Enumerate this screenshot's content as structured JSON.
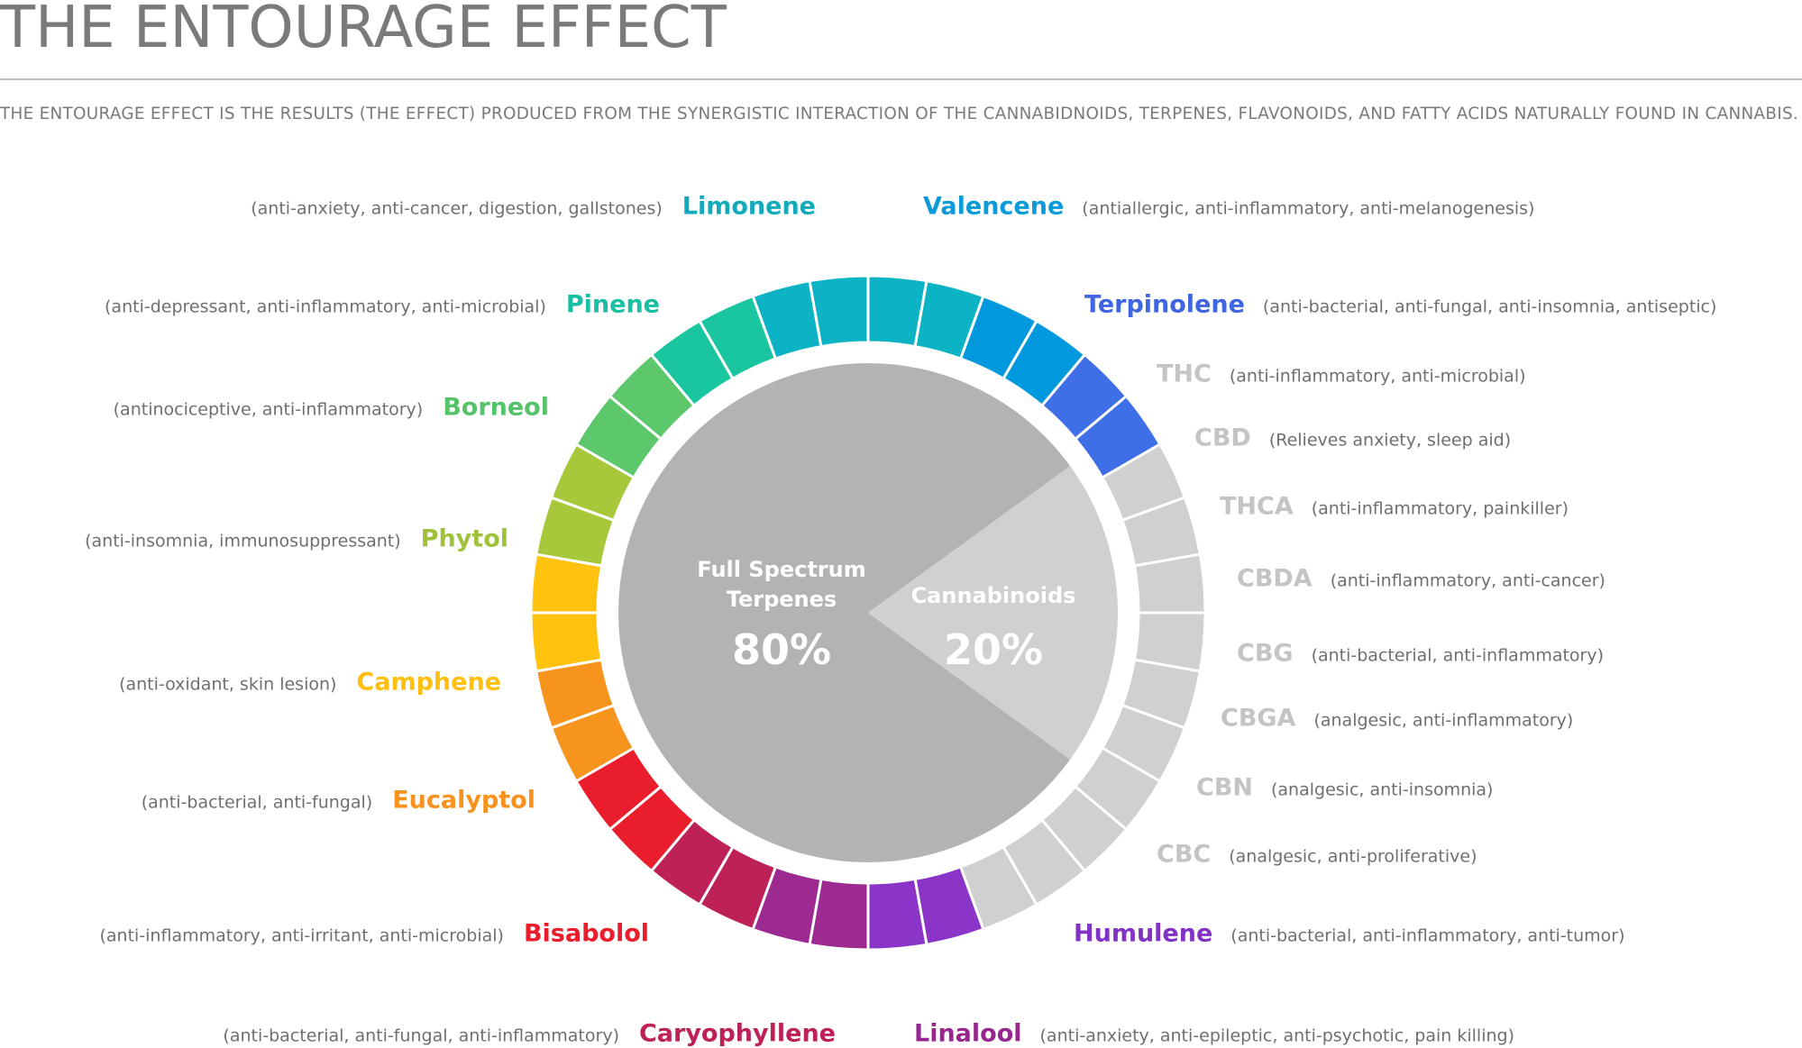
{
  "title": "THE ENTOURAGE EFFECT",
  "subtitle": "THE ENTOURAGE EFFECT IS THE RESULTS (THE EFFECT) PRODUCED FROM THE SYNERGISTIC INTERACTION OF THE CANNABIDNOIDS, TERPENES, FLAVONOIDS, AND FATTY ACIDS NATURALLY FOUND IN CANNABIS.",
  "pie": {
    "terpenes": {
      "label_line1": "Full Spectrum",
      "label_line2": "Terpenes",
      "percent": "80%",
      "value": 80,
      "color": "#b3b3b3"
    },
    "cannabinoids": {
      "label": "Cannabinoids",
      "percent": "20%",
      "value": 20,
      "color": "#d0d0d0"
    }
  },
  "ring_colors": [
    "#0cb3c4",
    "#0cb3c4",
    "#0099dd",
    "#0099dd",
    "#3f6fe6",
    "#3f6fe6",
    "#d0d0d0",
    "#d0d0d0",
    "#d0d0d0",
    "#d0d0d0",
    "#d0d0d0",
    "#d0d0d0",
    "#d0d0d0",
    "#d0d0d0",
    "#d0d0d0",
    "#d0d0d0",
    "#8b35c8",
    "#8b35c8",
    "#9c2a90",
    "#9c2a90",
    "#be2158",
    "#be2158",
    "#e91d2b",
    "#e91d2b",
    "#f7941d",
    "#f7941d",
    "#ffc20e",
    "#ffc20e",
    "#a6c83a",
    "#a6c83a",
    "#5cc86b",
    "#5cc86b",
    "#19c6a0",
    "#19c6a0",
    "#0cb3c4",
    "#0cb3c4"
  ],
  "compounds": {
    "limonene": {
      "name": "Limonene",
      "desc": "(anti-anxiety, anti-cancer, digestion, gallstones)",
      "color": "#13aabb"
    },
    "pinene": {
      "name": "Pinene",
      "desc": "(anti-depressant, anti-inflammatory, anti-microbial)",
      "color": "#18bfa0"
    },
    "borneol": {
      "name": "Borneol",
      "desc": "(antinociceptive, anti-inflammatory)",
      "color": "#55c36a"
    },
    "phytol": {
      "name": "Phytol",
      "desc": "(anti-insomnia, immunosuppressant)",
      "color": "#9fc23a"
    },
    "camphene": {
      "name": "Camphene",
      "desc": "(anti-oxidant, skin lesion)",
      "color": "#ffbf0f"
    },
    "eucalyptol": {
      "name": "Eucalyptol",
      "desc": "(anti-bacterial, anti-fungal)",
      "color": "#f7921e"
    },
    "bisabolol": {
      "name": "Bisabolol",
      "desc": "(anti-inflammatory, anti-irritant, anti-microbial)",
      "color": "#e91d2b"
    },
    "caryophyllene": {
      "name": "Caryophyllene",
      "desc": "(anti-bacterial, anti-fungal, anti-inflammatory)",
      "color": "#bd2158"
    },
    "linalool": {
      "name": "Linalool",
      "desc": "(anti-anxiety, anti-epileptic, anti-psychotic, pain killing)",
      "color": "#97278f"
    },
    "humulene": {
      "name": "Humulene",
      "desc": "(anti-bacterial, anti-inflammatory, anti-tumor)",
      "color": "#8233c6"
    },
    "valencene": {
      "name": "Valencene",
      "desc": "(antiallergic, anti-inflammatory, anti-melanogenesis)",
      "color": "#0a9bd8"
    },
    "terpinolene": {
      "name": "Terpinolene",
      "desc": "(anti-bacterial, anti-fungal, anti-insomnia, antiseptic)",
      "color": "#3f66e0"
    },
    "thc": {
      "name": "THC",
      "desc": "(anti-inflammatory, anti-microbial)",
      "color": "#c4c4c4"
    },
    "cbd": {
      "name": "CBD",
      "desc": "(Relieves anxiety, sleep aid)",
      "color": "#c4c4c4"
    },
    "thca": {
      "name": "THCA",
      "desc": "(anti-inflammatory, painkiller)",
      "color": "#c4c4c4"
    },
    "cbda": {
      "name": "CBDA",
      "desc": "(anti-inflammatory, anti-cancer)",
      "color": "#c4c4c4"
    },
    "cbg": {
      "name": "CBG",
      "desc": "(anti-bacterial, anti-inflammatory)",
      "color": "#c4c4c4"
    },
    "cbga": {
      "name": "CBGA",
      "desc": "(analgesic, anti-inflammatory)",
      "color": "#c4c4c4"
    },
    "cbn": {
      "name": "CBN",
      "desc": "(analgesic, anti-insomnia)",
      "color": "#c4c4c4"
    },
    "cbc": {
      "name": "CBC",
      "desc": "(analgesic, anti-proliferative)",
      "color": "#c4c4c4"
    }
  }
}
